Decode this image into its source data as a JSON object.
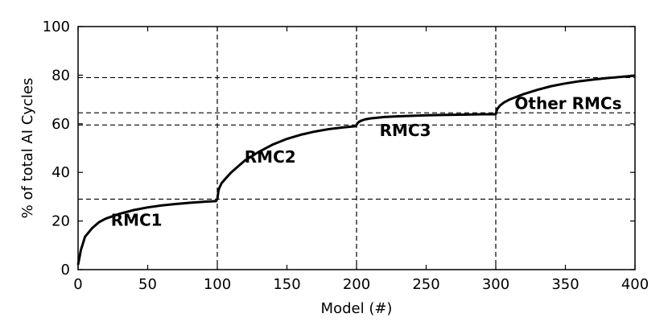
{
  "chart_data": {
    "type": "line",
    "xlabel": "Model (#)",
    "ylabel": "% of total AI Cycles",
    "xlim": [
      0,
      400
    ],
    "ylim": [
      0,
      100
    ],
    "xticks": [
      0,
      50,
      100,
      150,
      200,
      250,
      300,
      350,
      400
    ],
    "yticks": [
      0,
      20,
      40,
      60,
      80,
      100
    ],
    "grid": false,
    "series": [
      {
        "x": [
          0,
          2,
          5,
          10,
          15,
          20,
          30,
          40,
          50,
          60,
          70,
          80,
          90,
          99,
          100,
          101,
          103,
          106,
          110,
          115,
          120,
          130,
          140,
          150,
          160,
          170,
          180,
          190,
          199,
          200,
          201,
          203,
          206,
          210,
          220,
          230,
          240,
          250,
          260,
          270,
          280,
          290,
          299,
          300,
          301,
          303,
          306,
          310,
          320,
          330,
          340,
          350,
          360,
          370,
          380,
          390,
          400
        ],
        "y": [
          2,
          8,
          13.5,
          17,
          19.5,
          21,
          23,
          24.5,
          25.6,
          26.4,
          27,
          27.5,
          27.9,
          28.2,
          29,
          33,
          35.5,
          37.5,
          40,
          42.5,
          45,
          48.5,
          51.5,
          53.8,
          55.5,
          56.8,
          57.8,
          58.5,
          59,
          59.5,
          60.5,
          61.2,
          61.8,
          62.2,
          62.8,
          63.1,
          63.3,
          63.5,
          63.6,
          63.7,
          63.8,
          63.9,
          63.9,
          64,
          66,
          67.5,
          68.8,
          70,
          72.2,
          74,
          75.5,
          76.6,
          77.5,
          78.2,
          78.8,
          79.3,
          79.8
        ]
      }
    ],
    "reference_lines": {
      "vertical_x": [
        100,
        200,
        300
      ],
      "horizontal_y": [
        29,
        59.5,
        64.5,
        79
      ]
    },
    "annotations": [
      {
        "text": "RMC1",
        "x": 42,
        "y": 18
      },
      {
        "text": "RMC2",
        "x": 138,
        "y": 44
      },
      {
        "text": "RMC3",
        "x": 235,
        "y": 55
      },
      {
        "text": "Other RMCs",
        "x": 352,
        "y": 66
      }
    ]
  }
}
